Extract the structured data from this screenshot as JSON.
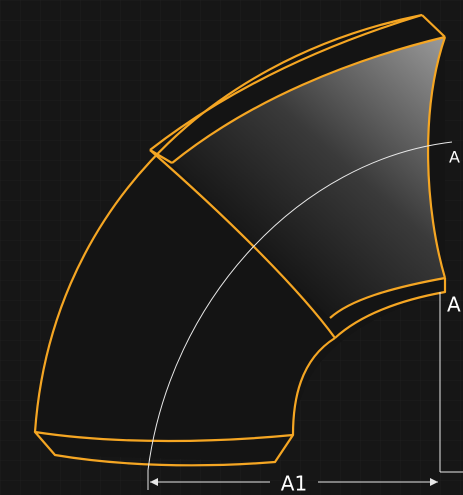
{
  "labels": {
    "top": "A",
    "right": "A",
    "bottom": "A1"
  }
}
